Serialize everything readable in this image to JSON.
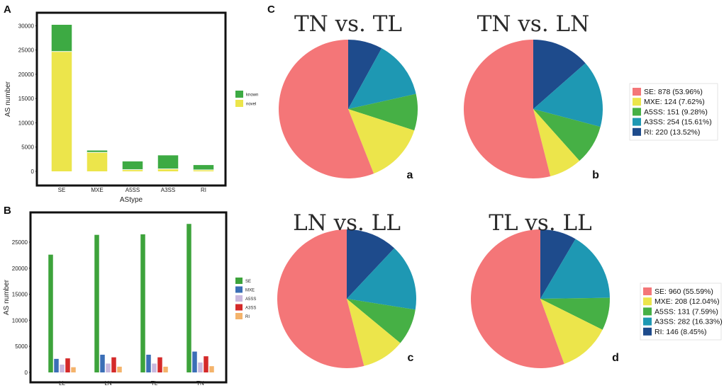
{
  "panel_labels": {
    "A": "A",
    "B": "B",
    "C": "C"
  },
  "chart_data": [
    {
      "type": "bar",
      "stacked": true,
      "panel": "A",
      "categories": [
        "SE",
        "MXE",
        "A5SS",
        "A3SS",
        "RI"
      ],
      "series": [
        {
          "name": "novel",
          "color": "#ECE54B",
          "values": [
            24700,
            3900,
            350,
            500,
            300
          ]
        },
        {
          "name": "known",
          "color": "#3DAA43",
          "values": [
            5500,
            400,
            1700,
            2800,
            1000
          ]
        }
      ],
      "xlabel": "AStype",
      "ylabel": "AS number",
      "ylim": [
        0,
        31000
      ],
      "yticks": [
        0,
        5000,
        10000,
        15000,
        20000,
        25000,
        30000
      ],
      "legend": [
        "known",
        "novel"
      ],
      "legend_colors": [
        "#3DAA43",
        "#ECE54B"
      ]
    },
    {
      "type": "bar",
      "grouped": true,
      "panel": "B",
      "categories": [
        "LL",
        "LN",
        "TL",
        "TN"
      ],
      "series": [
        {
          "name": "SE",
          "color": "#3DA33B",
          "values": [
            22600,
            26400,
            26500,
            28500
          ]
        },
        {
          "name": "MXE",
          "color": "#3B6FB6",
          "values": [
            2600,
            3400,
            3400,
            4000
          ]
        },
        {
          "name": "A5SS",
          "color": "#C9B8DE",
          "values": [
            1500,
            1700,
            1700,
            1900
          ]
        },
        {
          "name": "A3SS",
          "color": "#D42A2A",
          "values": [
            2700,
            2900,
            2900,
            3100
          ]
        },
        {
          "name": "RI",
          "color": "#F4B36B",
          "values": [
            1000,
            1100,
            1100,
            1200
          ]
        }
      ],
      "xlabel": "",
      "ylabel": "AS number",
      "ylim": [
        0,
        30000
      ],
      "yticks": [
        0,
        5000,
        10000,
        15000,
        20000,
        25000
      ]
    },
    {
      "type": "pie",
      "panel": "C",
      "label": "a",
      "title": "TN vs. TL",
      "slices": [
        {
          "name": "RI",
          "value": 8.0,
          "color": "#1E4B8C"
        },
        {
          "name": "A3SS",
          "value": 13.5,
          "color": "#1E98B3"
        },
        {
          "name": "A5SS",
          "value": 8.5,
          "color": "#46B045"
        },
        {
          "name": "MXE",
          "value": 14.0,
          "color": "#ECE54B"
        },
        {
          "name": "SE",
          "value": 56.0,
          "color": "#F47678"
        }
      ]
    },
    {
      "type": "pie",
      "panel": "C",
      "label": "b",
      "title": "TN vs. LN",
      "slices": [
        {
          "name": "RI",
          "value": 13.52,
          "color": "#1E4B8C"
        },
        {
          "name": "A3SS",
          "value": 15.61,
          "color": "#1E98B3"
        },
        {
          "name": "A5SS",
          "value": 9.28,
          "color": "#46B045"
        },
        {
          "name": "MXE",
          "value": 7.62,
          "color": "#ECE54B"
        },
        {
          "name": "SE",
          "value": 53.96,
          "color": "#F47678"
        }
      ]
    },
    {
      "type": "pie",
      "panel": "C",
      "label": "c",
      "title": "LN vs. LL",
      "slices": [
        {
          "name": "RI",
          "value": 12.0,
          "color": "#1E4B8C"
        },
        {
          "name": "A3SS",
          "value": 15.5,
          "color": "#1E98B3"
        },
        {
          "name": "A5SS",
          "value": 8.5,
          "color": "#46B045"
        },
        {
          "name": "MXE",
          "value": 10.0,
          "color": "#ECE54B"
        },
        {
          "name": "SE",
          "value": 54.0,
          "color": "#F47678"
        }
      ]
    },
    {
      "type": "pie",
      "panel": "C",
      "label": "d",
      "title": "TL vs. LL",
      "slices": [
        {
          "name": "RI",
          "value": 8.45,
          "color": "#1E4B8C"
        },
        {
          "name": "A3SS",
          "value": 16.33,
          "color": "#1E98B3"
        },
        {
          "name": "A5SS",
          "value": 7.59,
          "color": "#46B045"
        },
        {
          "name": "MXE",
          "value": 12.04,
          "color": "#ECE54B"
        },
        {
          "name": "SE",
          "value": 55.59,
          "color": "#F47678"
        }
      ]
    }
  ],
  "pie_legends": [
    {
      "entries": [
        {
          "text": "SE: 878 (53.96%)",
          "color": "#F47678"
        },
        {
          "text": "MXE: 124 (7.62%)",
          "color": "#ECE54B"
        },
        {
          "text": "A5SS: 151 (9.28%)",
          "color": "#46B045"
        },
        {
          "text": "A3SS: 254 (15.61%)",
          "color": "#1E98B3"
        },
        {
          "text": "RI: 220 (13.52%)",
          "color": "#1E4B8C"
        }
      ]
    },
    {
      "entries": [
        {
          "text": "SE: 960 (55.59%)",
          "color": "#F47678"
        },
        {
          "text": "MXE: 208 (12.04%)",
          "color": "#ECE54B"
        },
        {
          "text": "A5SS: 131 (7.59%)",
          "color": "#46B045"
        },
        {
          "text": "A3SS: 282 (16.33%)",
          "color": "#1E98B3"
        },
        {
          "text": "RI: 146 (8.45%)",
          "color": "#1E4B8C"
        }
      ]
    }
  ]
}
